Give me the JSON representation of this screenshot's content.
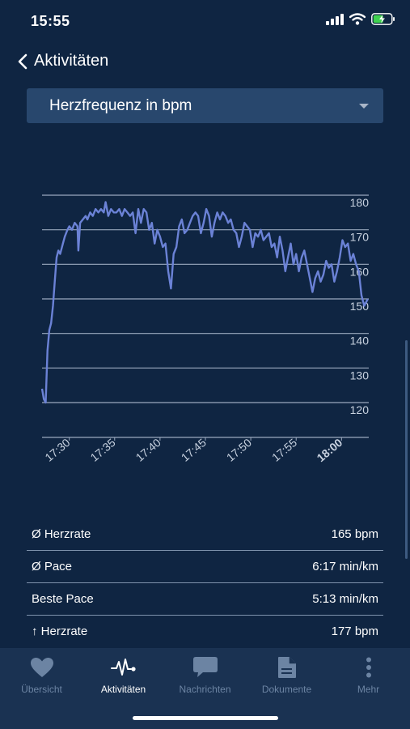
{
  "status": {
    "time": "15:55"
  },
  "nav": {
    "back_label": "Aktivitäten"
  },
  "selector": {
    "value": "Herzfrequenz in bpm"
  },
  "chart_data": {
    "type": "line",
    "title": "",
    "xlabel": "",
    "ylabel": "",
    "ylim": [
      120,
      180
    ],
    "yticks": [
      120,
      130,
      140,
      150,
      160,
      170,
      180
    ],
    "xlim": [
      27,
      63
    ],
    "xticks": [
      {
        "t": 30,
        "label": "17:30"
      },
      {
        "t": 35,
        "label": "17:35"
      },
      {
        "t": 40,
        "label": "17:40"
      },
      {
        "t": 45,
        "label": "17:45"
      },
      {
        "t": 50,
        "label": "17:50"
      },
      {
        "t": 55,
        "label": "17:55"
      },
      {
        "t": 60,
        "label": "18:00",
        "bold": true
      }
    ],
    "grid": true,
    "line_color": "#6b82d6",
    "series": [
      {
        "x": [
          27,
          27.2,
          27.4,
          27.6,
          27.8,
          28.0,
          28.2,
          28.4,
          28.6,
          28.8,
          29.0,
          29.3,
          29.5,
          29.8,
          30.0,
          30.3,
          30.6,
          30.9,
          31.0,
          31.2,
          31.5,
          31.8,
          32.0,
          32.3,
          32.6,
          32.9,
          33.2,
          33.5,
          33.8,
          34.0,
          34.3,
          34.6,
          34.9,
          35.2,
          35.5,
          35.8,
          36.1,
          36.4,
          36.7,
          37.0,
          37.3,
          37.6,
          37.9,
          38.2,
          38.5,
          38.8,
          39.1,
          39.4,
          39.7,
          40.0,
          40.3,
          40.6,
          40.9,
          41.2,
          41.5,
          41.8,
          42.1,
          42.4,
          42.7,
          43.0,
          43.3,
          43.6,
          43.9,
          44.2,
          44.5,
          44.8,
          45.1,
          45.4,
          45.7,
          46.0,
          46.3,
          46.6,
          46.9,
          47.2,
          47.5,
          47.8,
          48.1,
          48.4,
          48.7,
          49.0,
          49.3,
          49.6,
          49.9,
          50.2,
          50.5,
          50.8,
          51.1,
          51.4,
          51.7,
          52.0,
          52.3,
          52.6,
          52.9,
          53.2,
          53.5,
          53.8,
          54.1,
          54.4,
          54.7,
          55.0,
          55.3,
          55.6,
          55.9,
          56.2,
          56.5,
          56.8,
          57.1,
          57.4,
          57.7,
          58.0,
          58.3,
          58.6,
          58.9,
          59.2,
          59.5,
          59.8,
          60.1,
          60.4,
          60.7,
          61.0,
          61.3,
          61.6,
          61.9,
          62.2,
          62.5,
          62.7,
          62.9
        ],
        "y": [
          124,
          121,
          120,
          135,
          141,
          143,
          148,
          155,
          162,
          164,
          163,
          166,
          168,
          170,
          171,
          170,
          172,
          171,
          164,
          172,
          173,
          174,
          173,
          175,
          174,
          176,
          175,
          176,
          175,
          178,
          174,
          176,
          175,
          175,
          176,
          174,
          176,
          175,
          174,
          175,
          169,
          176,
          172,
          176,
          175,
          170,
          172,
          166,
          170,
          168,
          165,
          166,
          158,
          153,
          163,
          165,
          171,
          173,
          169,
          170,
          172,
          174,
          175,
          174,
          169,
          172,
          176,
          174,
          168,
          172,
          175,
          173,
          175,
          174,
          172,
          173,
          170,
          169,
          165,
          168,
          172,
          171,
          170,
          165,
          169,
          168,
          170,
          167,
          168,
          169,
          165,
          166,
          162,
          168,
          164,
          158,
          162,
          166,
          160,
          163,
          158,
          162,
          164,
          160,
          156,
          152,
          156,
          158,
          155,
          157,
          161,
          159,
          160,
          155,
          158,
          162,
          167,
          165,
          166,
          161,
          163,
          160,
          158,
          151,
          148,
          149,
          150
        ]
      }
    ]
  },
  "stats": [
    {
      "label": "Ø Herzrate",
      "value": "165 bpm"
    },
    {
      "label": "Ø Pace",
      "value": "6:17 min/km"
    },
    {
      "label": "Beste Pace",
      "value": "5:13 min/km"
    },
    {
      "label": "↑ Herzrate",
      "value": "177 bpm"
    }
  ],
  "tabs": [
    {
      "label": "Übersicht",
      "icon": "heart-icon"
    },
    {
      "label": "Aktivitäten",
      "icon": "pulse-icon",
      "active": true
    },
    {
      "label": "Nachrichten",
      "icon": "chat-bubble-icon"
    },
    {
      "label": "Dokumente",
      "icon": "document-icon"
    },
    {
      "label": "Mehr",
      "icon": "more-vertical-icon"
    }
  ]
}
